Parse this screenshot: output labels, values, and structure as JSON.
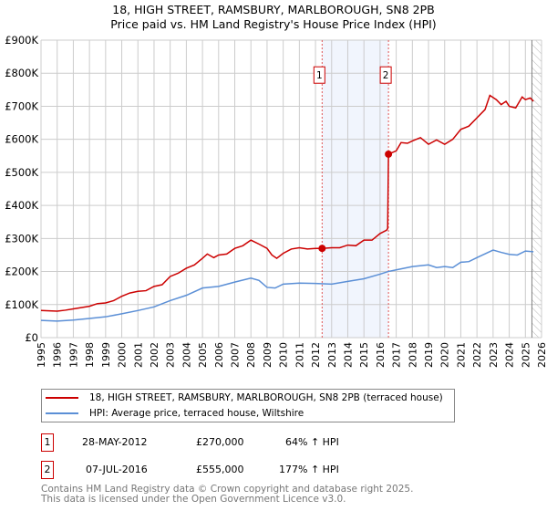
{
  "chart_data": {
    "type": "line",
    "title": "18, HIGH STREET, RAMSBURY, MARLBOROUGH, SN8 2PB",
    "subtitle": "Price paid vs. HM Land Registry's House Price Index (HPI)",
    "xlim": [
      1995,
      2026
    ],
    "ylim": [
      0,
      900000
    ],
    "x_ticks": [
      "1995",
      "1996",
      "1997",
      "1998",
      "1999",
      "2000",
      "2001",
      "2002",
      "2003",
      "2004",
      "2005",
      "2006",
      "2007",
      "2008",
      "2009",
      "2010",
      "2011",
      "2012",
      "2013",
      "2014",
      "2015",
      "2016",
      "2017",
      "2018",
      "2019",
      "2020",
      "2021",
      "2022",
      "2023",
      "2024",
      "2025",
      "2026"
    ],
    "y_ticks": [
      {
        "v": 0,
        "label": "£0"
      },
      {
        "v": 100000,
        "label": "£100K"
      },
      {
        "v": 200000,
        "label": "£200K"
      },
      {
        "v": 300000,
        "label": "£300K"
      },
      {
        "v": 400000,
        "label": "£400K"
      },
      {
        "v": 500000,
        "label": "£500K"
      },
      {
        "v": 600000,
        "label": "£600K"
      },
      {
        "v": 700000,
        "label": "£700K"
      },
      {
        "v": 800000,
        "label": "£800K"
      },
      {
        "v": 900000,
        "label": "£900K"
      }
    ],
    "grid": true,
    "shaded_range": [
      2012.41,
      2016.52
    ],
    "forecast_hatch_from": 2025.4,
    "series": [
      {
        "name": "18, HIGH STREET, RAMSBURY, MARLBOROUGH, SN8 2PB (terraced house)",
        "color": "#cc0000",
        "x": [
          1995,
          1996,
          1996.5,
          1997,
          1998,
          1998.5,
          1999,
          1999.5,
          2000,
          2000.5,
          2001,
          2001.5,
          2002,
          2002.5,
          2003,
          2003.5,
          2004,
          2004.5,
          2005,
          2005.3,
          2005.7,
          2006,
          2006.5,
          2007,
          2007.5,
          2008,
          2008.5,
          2009,
          2009.3,
          2009.6,
          2010,
          2010.5,
          2011,
          2011.5,
          2012,
          2012.41,
          2013,
          2013.5,
          2014,
          2014.5,
          2015,
          2015.5,
          2016,
          2016.4,
          2016.47,
          2016.52,
          2017,
          2017.3,
          2017.7,
          2018,
          2018.5,
          2019,
          2019.5,
          2020,
          2020.5,
          2021,
          2021.5,
          2022,
          2022.5,
          2022.8,
          2023.2,
          2023.5,
          2023.8,
          2024,
          2024.4,
          2024.8,
          2025,
          2025.3,
          2025.5
        ],
        "y": [
          82000,
          80000,
          83000,
          87000,
          95000,
          103000,
          105000,
          112000,
          125000,
          135000,
          140000,
          142000,
          155000,
          160000,
          185000,
          195000,
          210000,
          220000,
          240000,
          253000,
          242000,
          250000,
          253000,
          270000,
          278000,
          295000,
          283000,
          270000,
          250000,
          240000,
          255000,
          268000,
          272000,
          268000,
          270000,
          270000,
          272000,
          272000,
          280000,
          278000,
          295000,
          295000,
          315000,
          325000,
          330000,
          555000,
          565000,
          590000,
          588000,
          595000,
          605000,
          585000,
          598000,
          585000,
          600000,
          630000,
          640000,
          665000,
          690000,
          733000,
          720000,
          705000,
          715000,
          700000,
          695000,
          728000,
          720000,
          725000,
          715000
        ]
      },
      {
        "name": "HPI: Average price, terraced house, Wiltshire",
        "color": "#5b8fd6",
        "x": [
          1995,
          1996,
          1997,
          1998,
          1999,
          2000,
          2001,
          2002,
          2003,
          2004,
          2005,
          2006,
          2007,
          2008,
          2008.5,
          2009,
          2009.5,
          2010,
          2011,
          2012,
          2013,
          2014,
          2015,
          2016,
          2016.5,
          2017,
          2018,
          2019,
          2019.5,
          2020,
          2020.5,
          2021,
          2021.5,
          2022,
          2023,
          2023.5,
          2024,
          2024.5,
          2025,
          2025.5
        ],
        "y": [
          52000,
          50000,
          53000,
          58000,
          63000,
          72000,
          82000,
          93000,
          112000,
          128000,
          150000,
          155000,
          168000,
          180000,
          173000,
          152000,
          150000,
          162000,
          165000,
          164000,
          162000,
          170000,
          178000,
          192000,
          200000,
          205000,
          215000,
          220000,
          212000,
          215000,
          212000,
          228000,
          230000,
          242000,
          265000,
          258000,
          252000,
          250000,
          262000,
          260000
        ]
      }
    ],
    "sales": [
      {
        "num": "1",
        "x": 2012.41,
        "y": 270000,
        "date": "28-MAY-2012",
        "price": "£270,000",
        "hpi": "64% ↑ HPI"
      },
      {
        "num": "2",
        "x": 2016.52,
        "y": 555000,
        "date": "07-JUL-2016",
        "price": "£555,000",
        "hpi": "177% ↑ HPI"
      }
    ]
  },
  "footer": {
    "line1": "Contains HM Land Registry data © Crown copyright and database right 2025.",
    "line2": "This data is licensed under the Open Government Licence v3.0."
  }
}
